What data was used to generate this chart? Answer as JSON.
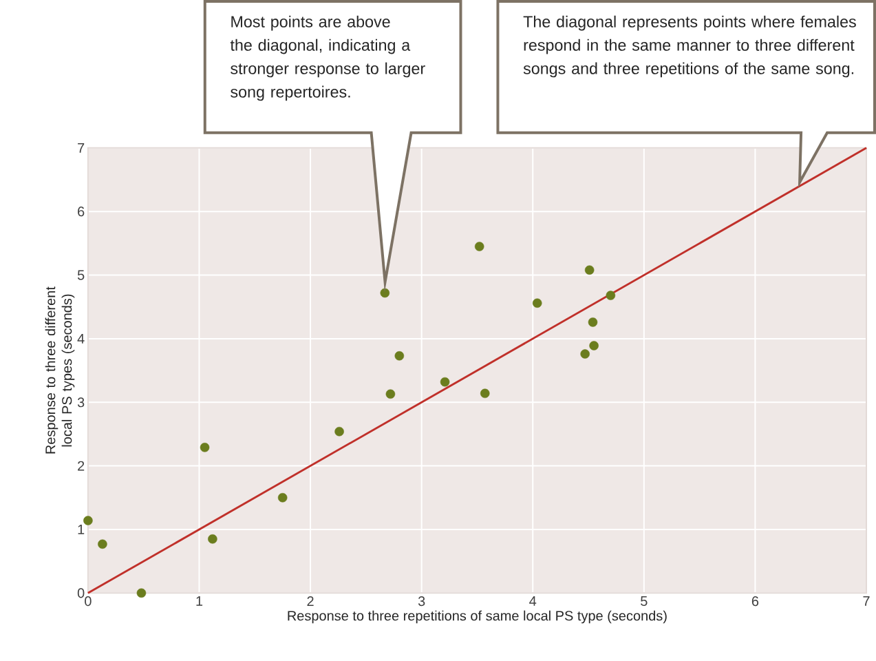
{
  "chart_data": {
    "type": "scatter",
    "xlabel": "Response to three repetitions of same local PS type (seconds)",
    "ylabel": "Response to three different local PS types (seconds)",
    "xlim": [
      0,
      7
    ],
    "ylim": [
      0,
      7
    ],
    "xticks": [
      0,
      1,
      2,
      3,
      4,
      5,
      6,
      7
    ],
    "yticks": [
      0,
      1,
      2,
      3,
      4,
      5,
      6,
      7
    ],
    "grid": true,
    "marker": "circle",
    "series": [
      {
        "color": "#6b7d1e",
        "x": [
          0,
          0.13,
          0.48,
          1.05,
          1.12,
          1.75,
          2.26,
          2.67,
          2.72,
          2.8,
          3.21,
          3.52,
          3.57,
          4.04,
          4.47,
          4.51,
          4.54,
          4.55,
          4.7
        ],
        "values": [
          1.14,
          0.77,
          0,
          2.29,
          0.85,
          1.5,
          2.54,
          4.72,
          3.13,
          3.73,
          3.32,
          5.45,
          3.14,
          4.56,
          3.76,
          5.08,
          4.26,
          3.89,
          4.68
        ]
      },
      {
        "type": "line",
        "marker": "none",
        "color": "#c0302a",
        "x": [
          0,
          7
        ],
        "values": [
          0,
          7
        ]
      }
    ],
    "annotations": [
      "Most points are above the diagonal, indicating a stronger response to larger song repertoires.",
      "The diagonal represents points where females respond in the same manner to three different songs and three repetitions of the same song."
    ]
  }
}
